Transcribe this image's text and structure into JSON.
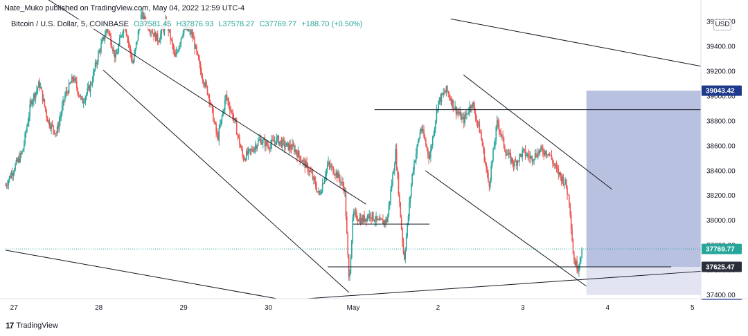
{
  "header": {
    "publisher": "Nate_Muko published on TradingView.com, May 04, 2022 12:59 UTC-4"
  },
  "symbol": {
    "title": "Bitcoin / U.S. Dollar, 5, COINBASE",
    "open": "O37581.45",
    "high": "H37876.93",
    "low": "L37578.27",
    "close": "C37769.77",
    "change": "+188.70 (+0.50%)"
  },
  "currency_button": "USD",
  "footer": {
    "logo": "17",
    "brand": "TradingView"
  },
  "colors": {
    "up": "#26a69a",
    "down": "#ef5350",
    "box": "#7e8ec4",
    "accent": "#131722"
  },
  "price_tags": {
    "top": "39043.42",
    "last": "37769.77",
    "level": "37625.47",
    "bottom": "37400.00"
  },
  "chart_data": {
    "type": "candlestick",
    "title": "Bitcoin / U.S. Dollar, 5, COINBASE",
    "x_ticks": [
      "27",
      "28",
      "29",
      "30",
      "May",
      "2",
      "3",
      "4",
      "5"
    ],
    "y_ticks": [
      37400,
      37600,
      37800,
      38000,
      38200,
      38400,
      38600,
      38800,
      39000,
      39200,
      39400,
      39600
    ],
    "ylim": [
      37370,
      39650
    ],
    "xlim_days": [
      26.9,
      35.1
    ],
    "grid": false,
    "last_price": 37769.77,
    "path": [
      [
        26.9,
        38280
      ],
      [
        27.0,
        38420
      ],
      [
        27.1,
        38550
      ],
      [
        27.2,
        38950
      ],
      [
        27.3,
        39100
      ],
      [
        27.4,
        38800
      ],
      [
        27.5,
        38700
      ],
      [
        27.6,
        39000
      ],
      [
        27.7,
        39150
      ],
      [
        27.8,
        38950
      ],
      [
        27.9,
        39080
      ],
      [
        28.0,
        39350
      ],
      [
        28.1,
        39550
      ],
      [
        28.2,
        39300
      ],
      [
        28.3,
        39600
      ],
      [
        28.4,
        39250
      ],
      [
        28.5,
        39650
      ],
      [
        28.6,
        39550
      ],
      [
        28.7,
        39450
      ],
      [
        28.8,
        39600
      ],
      [
        28.9,
        39300
      ],
      [
        29.0,
        39550
      ],
      [
        29.1,
        39500
      ],
      [
        29.2,
        39200
      ],
      [
        29.3,
        39000
      ],
      [
        29.4,
        38650
      ],
      [
        29.5,
        39000
      ],
      [
        29.6,
        38800
      ],
      [
        29.7,
        38500
      ],
      [
        29.8,
        38560
      ],
      [
        29.9,
        38650
      ],
      [
        30.0,
        38600
      ],
      [
        30.1,
        38650
      ],
      [
        30.2,
        38600
      ],
      [
        30.3,
        38580
      ],
      [
        30.4,
        38480
      ],
      [
        30.5,
        38380
      ],
      [
        30.6,
        38200
      ],
      [
        30.7,
        38450
      ],
      [
        30.8,
        38380
      ],
      [
        30.9,
        38250
      ],
      [
        30.95,
        37500
      ],
      [
        31.0,
        38050
      ],
      [
        31.1,
        38000
      ],
      [
        31.2,
        38050
      ],
      [
        31.3,
        37980
      ],
      [
        31.4,
        38000
      ],
      [
        31.5,
        38550
      ],
      [
        31.55,
        38100
      ],
      [
        31.6,
        37680
      ],
      [
        31.7,
        38400
      ],
      [
        31.8,
        38750
      ],
      [
        31.9,
        38500
      ],
      [
        32.0,
        38950
      ],
      [
        32.1,
        39050
      ],
      [
        32.2,
        38900
      ],
      [
        32.3,
        38800
      ],
      [
        32.4,
        38950
      ],
      [
        32.5,
        38700
      ],
      [
        32.6,
        38280
      ],
      [
        32.7,
        38800
      ],
      [
        32.8,
        38550
      ],
      [
        32.9,
        38450
      ],
      [
        33.0,
        38550
      ],
      [
        33.1,
        38500
      ],
      [
        33.2,
        38560
      ],
      [
        33.3,
        38550
      ],
      [
        33.4,
        38400
      ],
      [
        33.5,
        38300
      ],
      [
        33.55,
        38150
      ],
      [
        33.6,
        37680
      ],
      [
        33.65,
        37620
      ],
      [
        33.7,
        37770
      ]
    ]
  }
}
